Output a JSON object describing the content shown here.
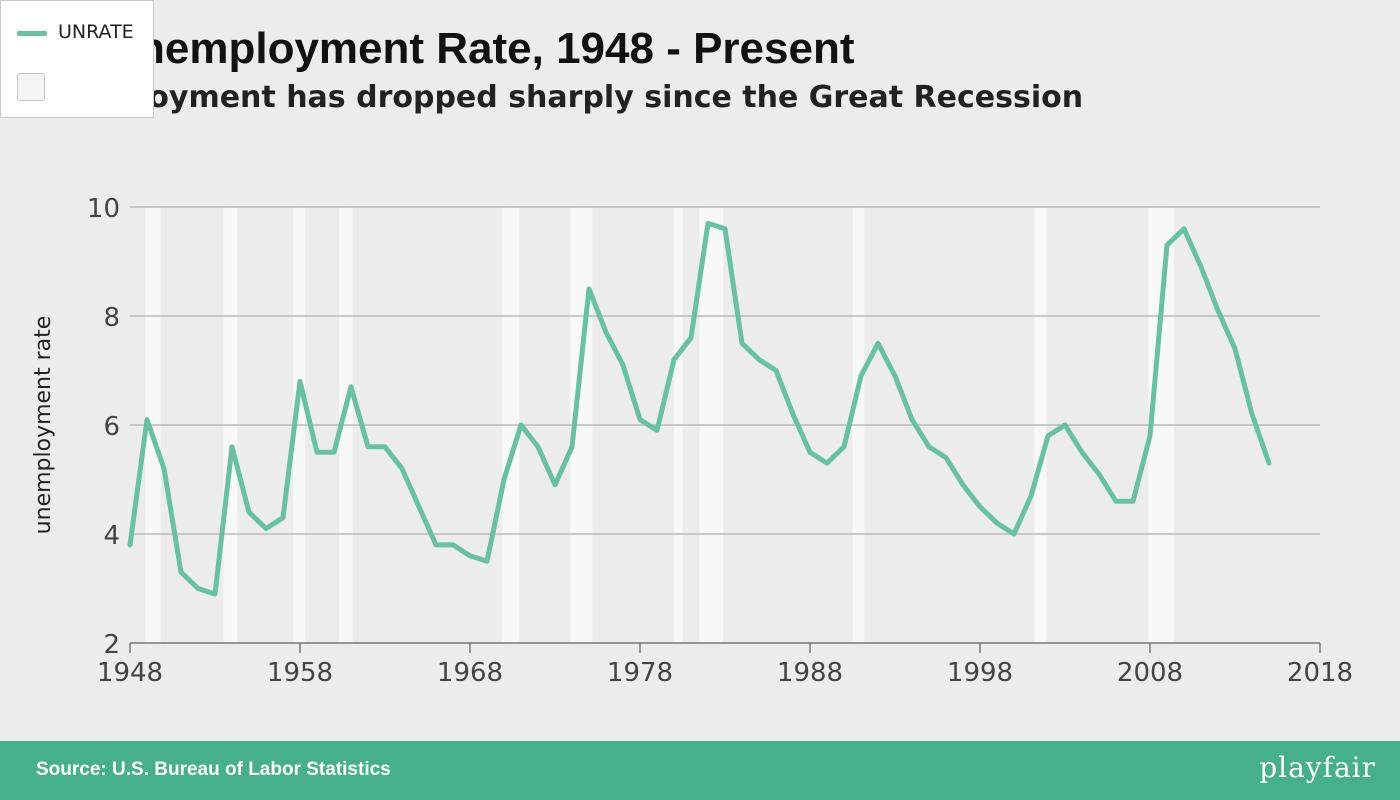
{
  "header": {
    "title": "nemployment Rate, 1948 - Present",
    "subtitle": "loyment has dropped sharply since the Great Recession"
  },
  "legend": {
    "items": [
      {
        "label": "UNRATE",
        "color": "#66c2a1"
      }
    ]
  },
  "footer": {
    "source": "Source: U.S. Bureau of Labor Statistics",
    "brand": "playfair",
    "color": "#46b08b"
  },
  "chart_data": {
    "type": "line",
    "ylabel": "unemployment rate",
    "ylim": [
      2,
      10
    ],
    "xlim": [
      1948,
      2018
    ],
    "yticks": [
      2,
      4,
      6,
      8,
      10
    ],
    "xticks": [
      1948,
      1958,
      1968,
      1978,
      1988,
      1998,
      2008,
      2018
    ],
    "grid": "horizontal",
    "legend_placement": "top-left",
    "line_color": "#66c2a1",
    "recessions": [
      [
        1948.9,
        1949.8
      ],
      [
        1953.5,
        1954.3
      ],
      [
        1957.6,
        1958.3
      ],
      [
        1960.3,
        1961.1
      ],
      [
        1969.9,
        1970.9
      ],
      [
        1973.9,
        1975.2
      ],
      [
        1980.0,
        1980.5
      ],
      [
        1981.5,
        1982.9
      ],
      [
        1990.5,
        1991.2
      ],
      [
        2001.2,
        2001.9
      ],
      [
        2007.9,
        2009.4
      ]
    ],
    "series": [
      {
        "name": "UNRATE",
        "x": [
          1948,
          1949,
          1950,
          1951,
          1952,
          1953,
          1954,
          1955,
          1956,
          1957,
          1958,
          1959,
          1960,
          1961,
          1962,
          1963,
          1964,
          1965,
          1966,
          1967,
          1968,
          1969,
          1970,
          1971,
          1972,
          1973,
          1974,
          1975,
          1976,
          1977,
          1978,
          1979,
          1980,
          1981,
          1982,
          1983,
          1984,
          1985,
          1986,
          1987,
          1988,
          1989,
          1990,
          1991,
          1992,
          1993,
          1994,
          1995,
          1996,
          1997,
          1998,
          1999,
          2000,
          2001,
          2002,
          2003,
          2004,
          2005,
          2006,
          2007,
          2008,
          2009,
          2010,
          2011,
          2012,
          2013,
          2014,
          2015
        ],
        "values": [
          3.8,
          6.1,
          5.2,
          3.3,
          3.0,
          2.9,
          5.6,
          4.4,
          4.1,
          4.3,
          6.8,
          5.5,
          5.5,
          6.7,
          5.6,
          5.6,
          5.2,
          4.5,
          3.8,
          3.8,
          3.6,
          3.5,
          5.0,
          6.0,
          5.6,
          4.9,
          5.6,
          8.5,
          7.7,
          7.1,
          6.1,
          5.9,
          7.2,
          7.6,
          9.7,
          9.6,
          7.5,
          7.2,
          7.0,
          6.2,
          5.5,
          5.3,
          5.6,
          6.9,
          7.5,
          6.9,
          6.1,
          5.6,
          5.4,
          4.9,
          4.5,
          4.2,
          4.0,
          4.7,
          5.8,
          6.0,
          5.5,
          5.1,
          4.6,
          4.6,
          5.8,
          9.3,
          9.6,
          8.9,
          8.1,
          7.4,
          6.2,
          5.3
        ]
      }
    ]
  }
}
